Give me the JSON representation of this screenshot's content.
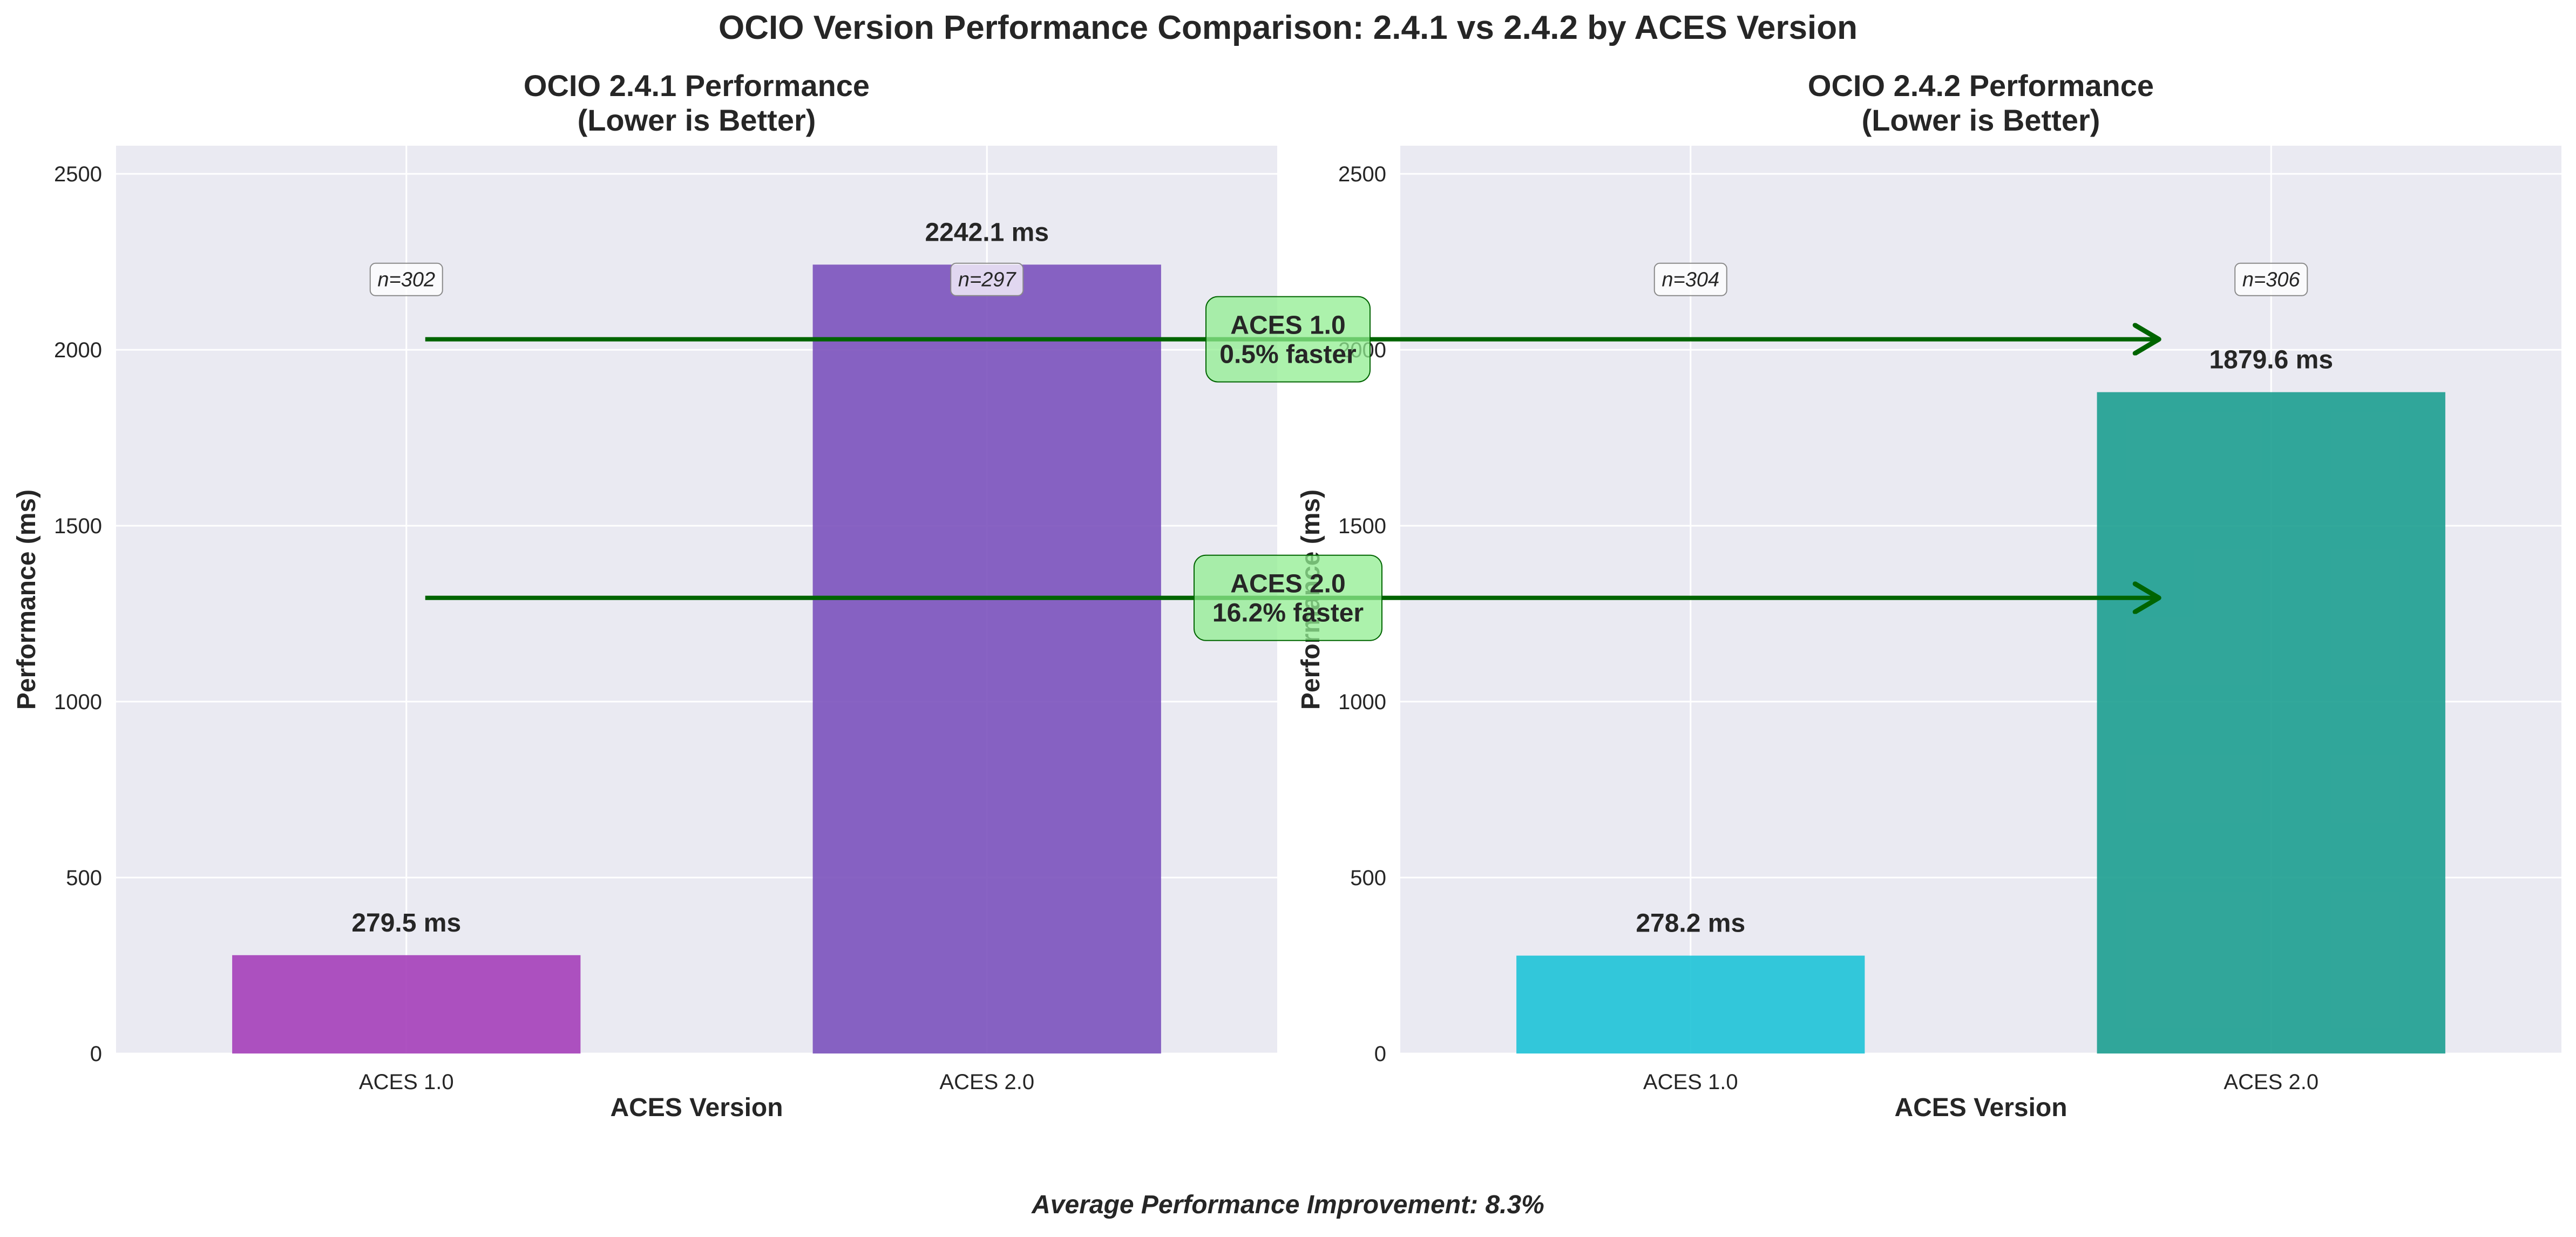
{
  "figure": {
    "suptitle": "OCIO Version Performance Comparison: 2.4.1 vs 2.4.2 by ACES Version",
    "footer": "Average Performance Improvement: 8.3%"
  },
  "colors": {
    "plot_bg": "#EAEAF2",
    "grid": "#FFFFFF",
    "text": "#262626",
    "arrow": "#006400",
    "annotation_fill": "#90EE90",
    "bar_241_aces1": "#A53FB9",
    "bar_241_aces2": "#7B52BD",
    "bar_242_aces1": "#1EC3D7",
    "bar_242_aces2": "#1C9E90"
  },
  "chart_data": [
    {
      "type": "bar",
      "title": "OCIO 2.4.1 Performance\n(Lower is Better)",
      "xlabel": "ACES Version",
      "ylabel": "Performance (ms)",
      "categories": [
        "ACES 1.0",
        "ACES 2.0"
      ],
      "values": [
        279.5,
        2242.1
      ],
      "value_labels": [
        "279.5 ms",
        "2242.1 ms"
      ],
      "sample_labels": [
        "n=302",
        "n=297"
      ],
      "bar_colors": [
        "#A53FB9",
        "#7B52BD"
      ],
      "ylim": [
        0,
        2580
      ],
      "yticks": [
        0,
        500,
        1000,
        1500,
        2000,
        2500
      ],
      "sample_label_y": 2200,
      "grid": true
    },
    {
      "type": "bar",
      "title": "OCIO 2.4.2 Performance\n(Lower is Better)",
      "xlabel": "ACES Version",
      "ylabel": "Performance (ms)",
      "categories": [
        "ACES 1.0",
        "ACES 2.0"
      ],
      "values": [
        278.2,
        1879.6
      ],
      "value_labels": [
        "278.2 ms",
        "1879.6 ms"
      ],
      "sample_labels": [
        "n=304",
        "n=306"
      ],
      "bar_colors": [
        "#1EC3D7",
        "#1C9E90"
      ],
      "ylim": [
        0,
        2580
      ],
      "yticks": [
        0,
        500,
        1000,
        1500,
        2000,
        2500
      ],
      "sample_label_y": 2200,
      "grid": true
    }
  ],
  "annotations": [
    {
      "lines": [
        "ACES 1.0",
        "0.5% faster"
      ],
      "y_value": 2030
    },
    {
      "lines": [
        "ACES 2.0",
        "16.2% faster"
      ],
      "y_value": 1295
    }
  ]
}
